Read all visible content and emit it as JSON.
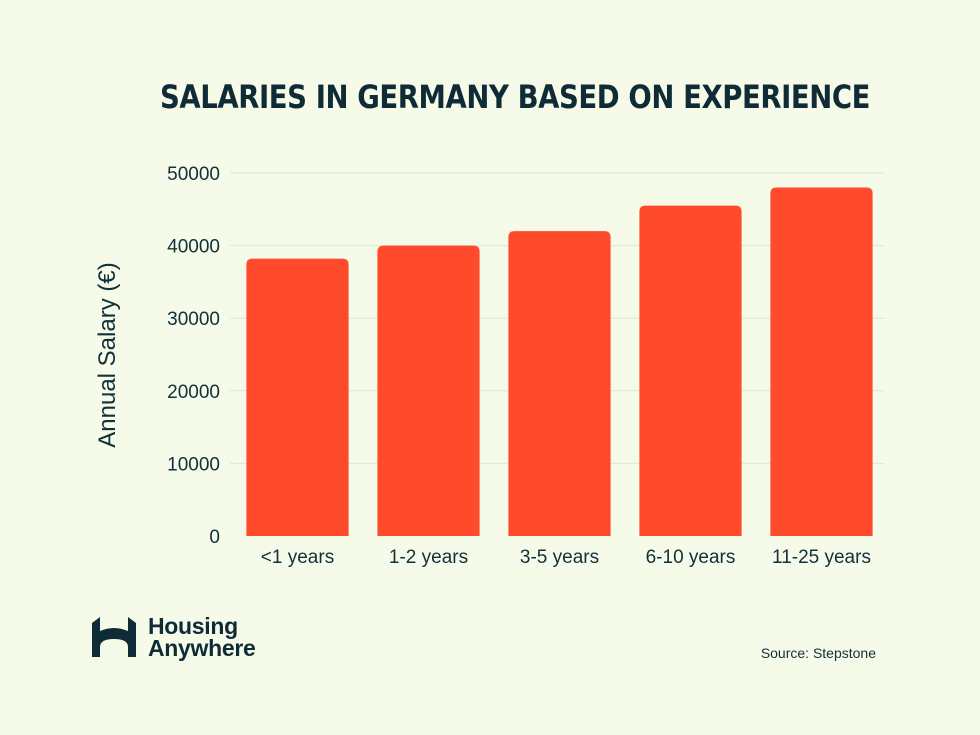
{
  "chart_data": {
    "type": "bar",
    "title": "SALARIES IN GERMANY BASED ON EXPERIENCE",
    "xlabel": "",
    "ylabel": "Annual Salary (€)",
    "categories": [
      "<1 years",
      "1-2 years",
      "3-5 years",
      "6-10 years",
      "11-25 years"
    ],
    "values": [
      38200,
      40000,
      42000,
      45500,
      48000
    ],
    "ylim": [
      0,
      50000
    ],
    "yticks": [
      0,
      10000,
      20000,
      30000,
      40000,
      50000
    ],
    "grid": true,
    "bar_color": "#ff4b2b",
    "grid_color": "#dfe6d8"
  },
  "branding": {
    "logo_line1": "Housing",
    "logo_line2": "Anywhere",
    "logo_icon": "housing-anywhere-logo-icon"
  },
  "source": "Source: Stepstone",
  "colors": {
    "background": "#f5fae9",
    "text": "#12303a",
    "accent": "#ff4b2b"
  }
}
